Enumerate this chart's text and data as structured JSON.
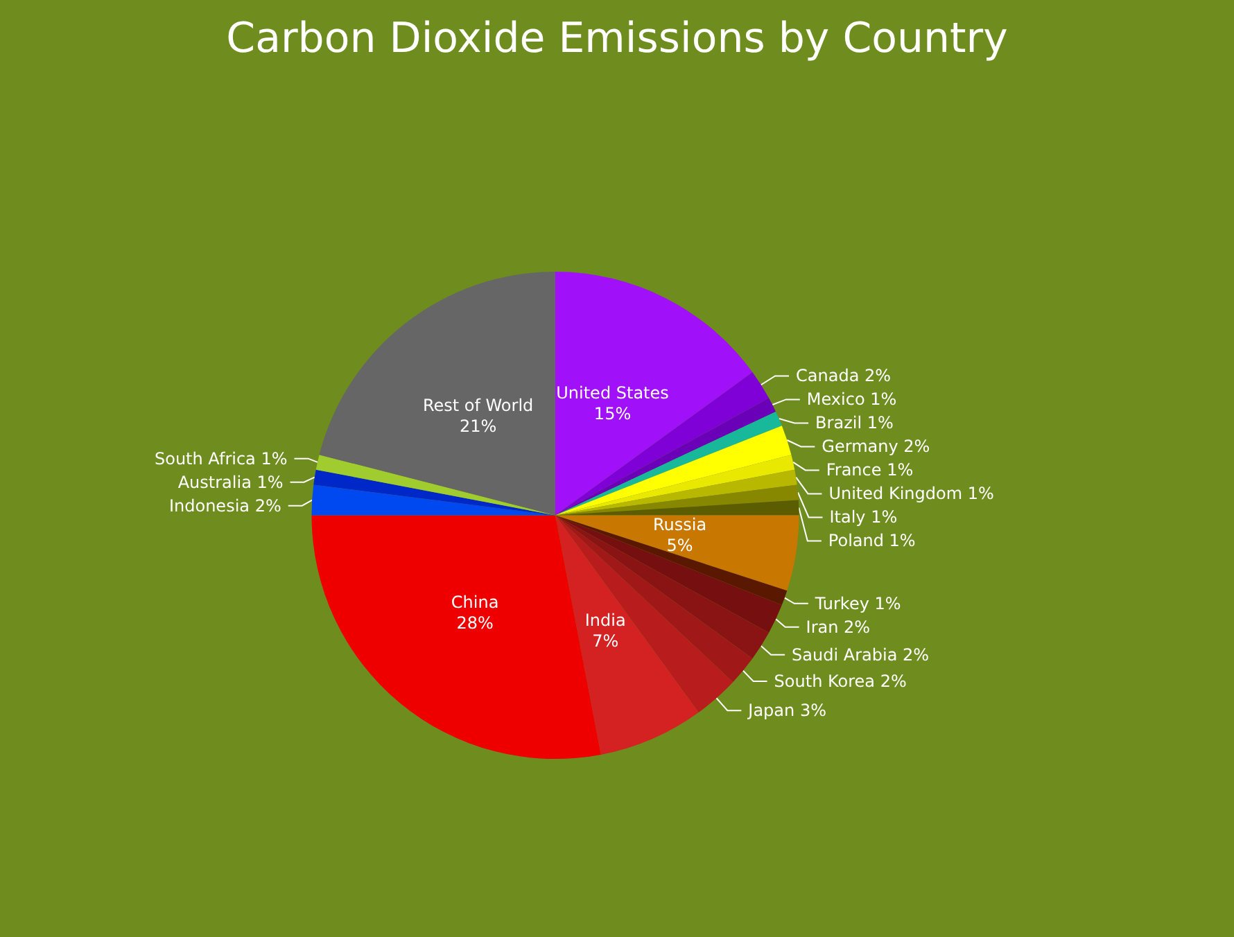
{
  "chart_data": {
    "type": "pie",
    "title": "Carbon Dioxide Emissions by Country",
    "categories": [
      "United States",
      "Canada",
      "Mexico",
      "Brazil",
      "Germany",
      "France",
      "United Kingdom",
      "Italy",
      "Poland",
      "Russia",
      "Turkey",
      "Iran",
      "Saudi Arabia",
      "South Korea",
      "Japan",
      "India",
      "China",
      "Indonesia",
      "Australia",
      "South Africa",
      "Rest of World"
    ],
    "values": [
      15,
      2,
      1,
      1,
      2,
      1,
      1,
      1,
      1,
      5,
      1,
      2,
      2,
      2,
      3,
      7,
      28,
      2,
      1,
      1,
      21
    ],
    "value_labels": [
      "15%",
      "2%",
      "1%",
      "1%",
      "2%",
      "1%",
      "1%",
      "1%",
      "1%",
      "5%",
      "1%",
      "2%",
      "2%",
      "2%",
      "3%",
      "7%",
      "28%",
      "2%",
      "1%",
      "1%",
      "21%"
    ],
    "colors": [
      "#a010f8",
      "#8000d8",
      "#6a00b8",
      "#18b89a",
      "#ffff00",
      "#e8e800",
      "#b8b800",
      "#888800",
      "#5c5c00",
      "#c87800",
      "#5a1800",
      "#761010",
      "#8a1414",
      "#a01818",
      "#b81c1c",
      "#d42222",
      "#ee0000",
      "#0048f0",
      "#0028c8",
      "#a0cc30",
      "#666666"
    ],
    "legend": false
  }
}
